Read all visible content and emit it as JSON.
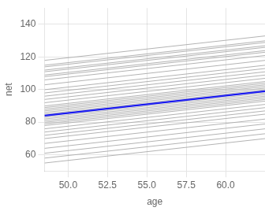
{
  "chart_data": {
    "type": "line",
    "xlabel": "age",
    "ylabel": "net",
    "x": [
      48.5,
      62.5
    ],
    "series": [
      {
        "color": "#aaaaaa",
        "values": [
          54.895,
          69.875
        ]
      },
      {
        "color": "#aaaaaa",
        "values": [
          57.895,
          72.875
        ]
      },
      {
        "color": "#aaaaaa",
        "values": [
          60.895,
          75.875
        ]
      },
      {
        "color": "#aaaaaa",
        "values": [
          63.895,
          78.875
        ]
      },
      {
        "color": "#aaaaaa",
        "values": [
          66.895,
          81.875
        ]
      },
      {
        "color": "#aaaaaa",
        "values": [
          69.895,
          84.875
        ]
      },
      {
        "color": "#aaaaaa",
        "values": [
          71.895,
          86.875
        ]
      },
      {
        "color": "#aaaaaa",
        "values": [
          73.895,
          88.875
        ]
      },
      {
        "color": "#aaaaaa",
        "values": [
          75.895,
          90.875
        ]
      },
      {
        "color": "#aaaaaa",
        "values": [
          77.895,
          92.875
        ]
      },
      {
        "color": "#aaaaaa",
        "values": [
          78.895,
          93.875
        ]
      },
      {
        "color": "#aaaaaa",
        "values": [
          79.895,
          94.875
        ]
      },
      {
        "color": "#aaaaaa",
        "values": [
          80.895,
          95.875
        ]
      },
      {
        "color": "#aaaaaa",
        "values": [
          81.895,
          96.875
        ]
      },
      {
        "color": "#aaaaaa",
        "values": [
          82.895,
          97.875
        ]
      },
      {
        "color": "#aaaaaa",
        "values": [
          83.895,
          98.875
        ]
      },
      {
        "color": "#aaaaaa",
        "values": [
          84.895,
          99.875
        ]
      },
      {
        "color": "#aaaaaa",
        "values": [
          85.895,
          100.875
        ]
      },
      {
        "color": "#aaaaaa",
        "values": [
          86.895,
          101.875
        ]
      },
      {
        "color": "#aaaaaa",
        "values": [
          87.895,
          102.875
        ]
      },
      {
        "color": "#aaaaaa",
        "values": [
          88.895,
          103.875
        ]
      },
      {
        "color": "#aaaaaa",
        "values": [
          89.895,
          104.875
        ]
      },
      {
        "color": "#aaaaaa",
        "values": [
          91.895,
          106.875
        ]
      },
      {
        "color": "#aaaaaa",
        "values": [
          93.895,
          108.875
        ]
      },
      {
        "color": "#aaaaaa",
        "values": [
          95.895,
          110.875
        ]
      },
      {
        "color": "#aaaaaa",
        "values": [
          97.895,
          112.875
        ]
      },
      {
        "color": "#aaaaaa",
        "values": [
          99.895,
          114.875
        ]
      },
      {
        "color": "#aaaaaa",
        "values": [
          102.895,
          117.875
        ]
      },
      {
        "color": "#aaaaaa",
        "values": [
          105.895,
          120.875
        ]
      },
      {
        "color": "#aaaaaa",
        "values": [
          108.895,
          123.875
        ]
      },
      {
        "color": "#aaaaaa",
        "values": [
          111.895,
          126.875
        ]
      },
      {
        "color": "#aaaaaa",
        "values": [
          114.895,
          129.875
        ]
      },
      {
        "color": "#aaaaaa",
        "values": [
          117.895,
          132.875
        ]
      },
      {
        "color": "#aaaaaa",
        "values": [
          107.895,
          122.875
        ]
      },
      {
        "color": "#aaaaaa",
        "values": [
          110.895,
          125.875
        ]
      },
      {
        "color": "#aaaaaa",
        "values": [
          113.895,
          128.875
        ]
      },
      {
        "color": "#1a1aee",
        "values": [
          83.995,
          98.975
        ]
      }
    ],
    "xlim": [
      48.5,
      62.5
    ],
    "ylim": [
      50,
      150
    ],
    "xticks": [
      {
        "value": 50.0,
        "label": "50.0"
      },
      52.5,
      {
        "value": 55.0,
        "label": "55.0"
      },
      57.5,
      {
        "value": 60.0,
        "label": "60.0"
      }
    ],
    "yticks": [
      60,
      80,
      100,
      120,
      140
    ],
    "grid": true
  }
}
